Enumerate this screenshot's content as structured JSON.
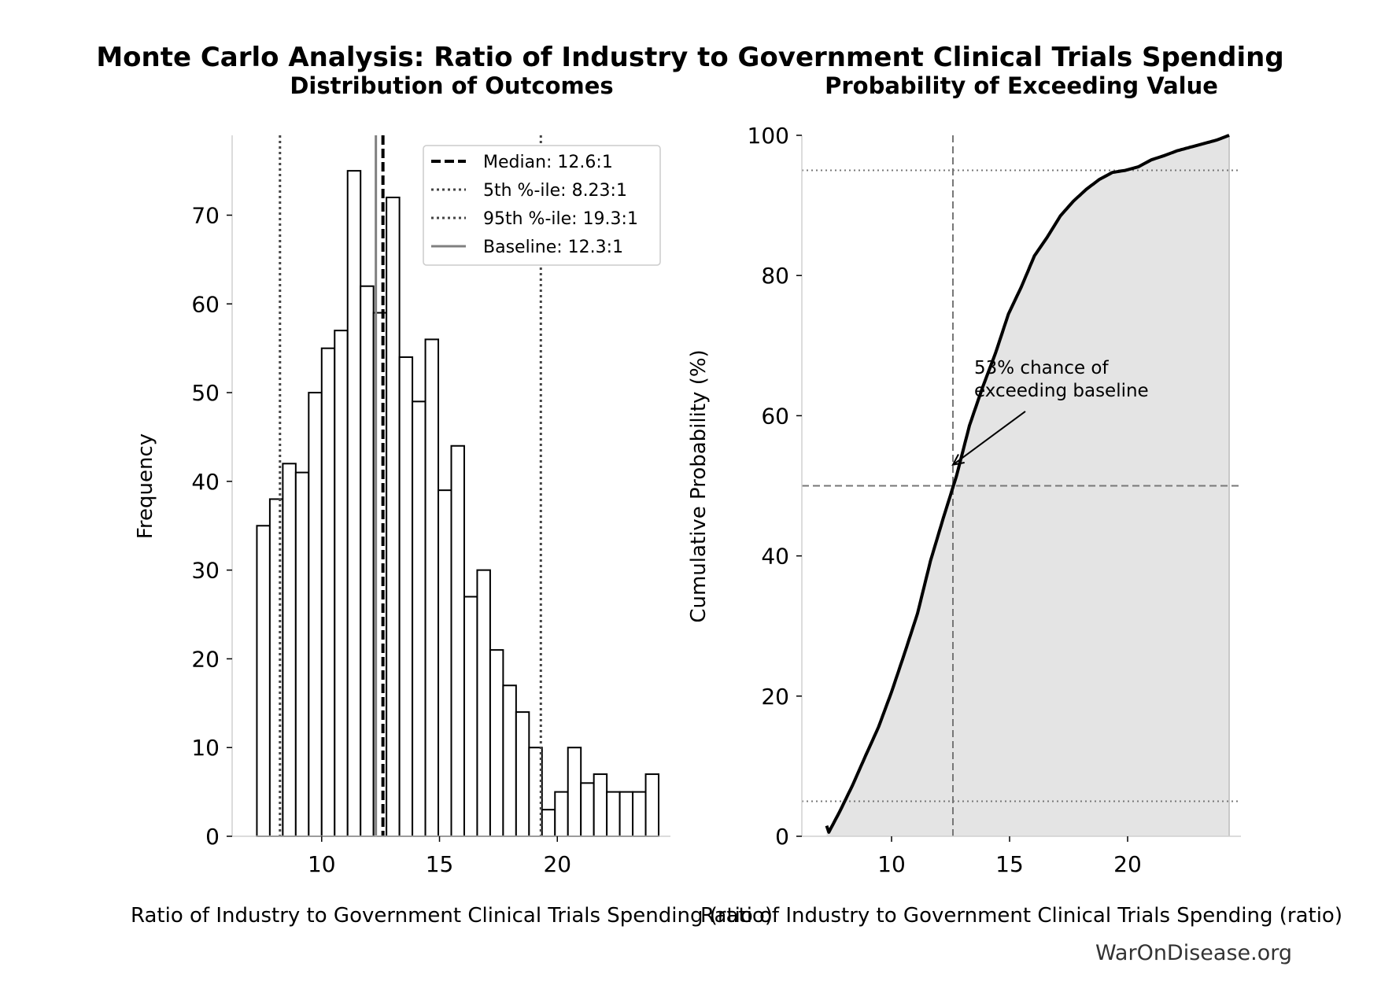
{
  "figure": {
    "suptitle": "Monte Carlo Analysis: Ratio of Industry to Government Clinical Trials Spending",
    "watermark": "WarOnDisease.org"
  },
  "chart_data": [
    {
      "type": "bar",
      "subtype": "histogram",
      "title": "Distribution of Outcomes",
      "xlabel": "Ratio of Industry to Government Clinical Trials Spending (ratio)",
      "ylabel": "Frequency",
      "xlim": [
        6.2,
        24.8
      ],
      "ylim": [
        0,
        79
      ],
      "xticks": [
        10,
        15,
        20
      ],
      "yticks": [
        0,
        10,
        20,
        30,
        40,
        50,
        60,
        70
      ],
      "bin_start": 7.25,
      "bin_width": 0.55,
      "values": [
        35,
        38,
        42,
        41,
        50,
        55,
        57,
        75,
        62,
        59,
        72,
        54,
        49,
        56,
        39,
        44,
        27,
        30,
        21,
        17,
        14,
        10,
        3,
        5,
        10,
        6,
        7,
        5,
        5,
        5,
        7
      ],
      "reference_lines": [
        {
          "key": "median",
          "label": "Median: 12.6:1",
          "x": 12.6,
          "style": "dashed",
          "color": "#000000"
        },
        {
          "key": "p5",
          "label": "5th %-ile: 8.23:1",
          "x": 8.23,
          "style": "dotted",
          "color": "#444444"
        },
        {
          "key": "p95",
          "label": "95th %-ile: 19.3:1",
          "x": 19.3,
          "style": "dotted",
          "color": "#444444"
        },
        {
          "key": "baseline",
          "label": "Baseline: 12.3:1",
          "x": 12.3,
          "style": "solid",
          "color": "#808080"
        }
      ],
      "legend_position": "top-right",
      "grid": false
    },
    {
      "type": "line",
      "subtype": "cumulative-distribution",
      "title": "Probability of Exceeding Value",
      "xlabel": "Ratio of Industry to Government Clinical Trials Spending (ratio)",
      "ylabel": "Cumulative Probability (%)",
      "xlim": [
        6.2,
        24.8
      ],
      "ylim": [
        0,
        100
      ],
      "xticks": [
        10,
        15,
        20
      ],
      "yticks": [
        0,
        20,
        40,
        60,
        80,
        100
      ],
      "hlines": [
        95,
        50,
        5
      ],
      "vline_x": 12.6,
      "fill": "#e4e4e4",
      "annotation": {
        "line1": "53% chance of",
        "line2": "exceeding baseline",
        "arrow_to": [
          12.6,
          53
        ],
        "text_at": [
          13.5,
          66
        ]
      },
      "grid": false
    }
  ]
}
